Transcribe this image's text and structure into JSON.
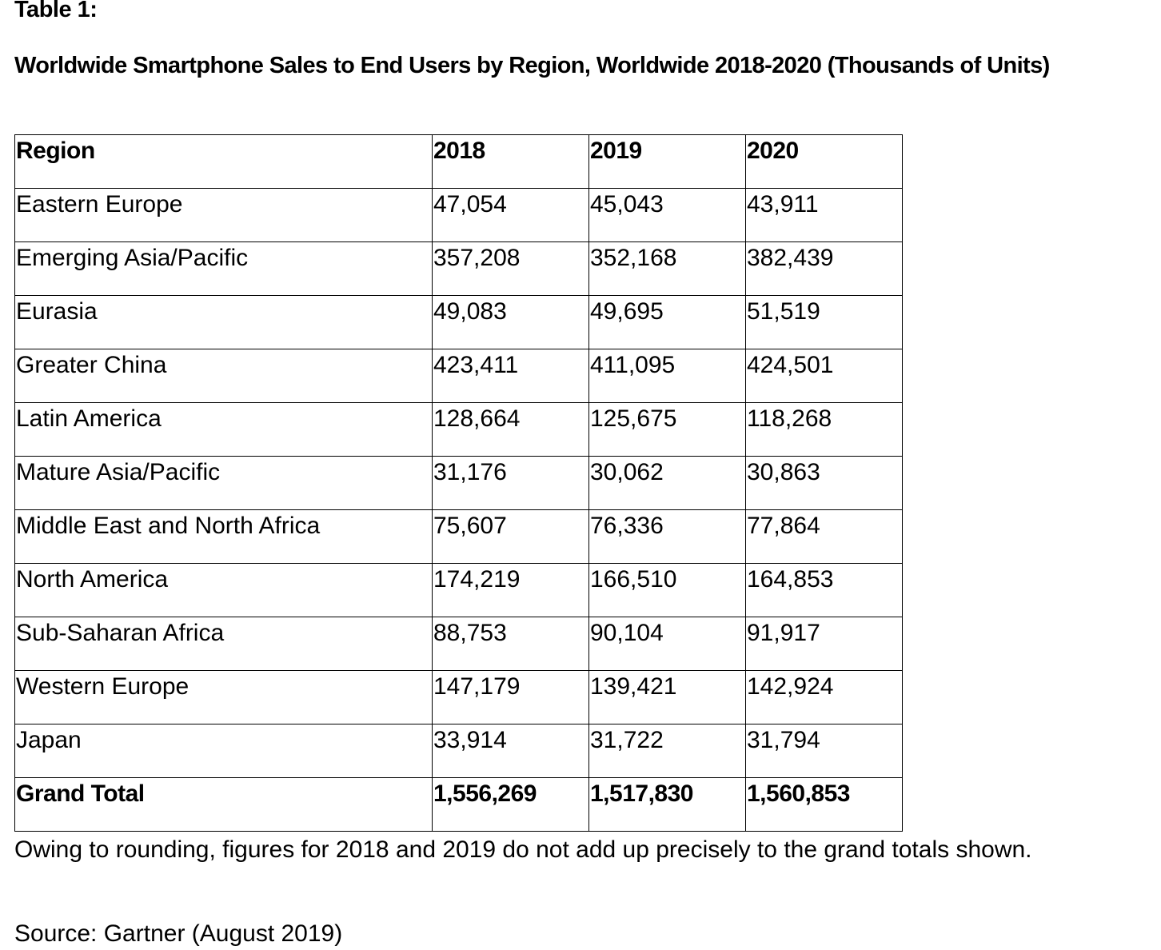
{
  "table_label": "Table 1:",
  "title": "Worldwide Smartphone Sales to End Users by Region, Worldwide 2018-2020 (Thousands of Units)",
  "table": {
    "headers": [
      "Region",
      "2018",
      "2019",
      "2020"
    ],
    "rows": [
      [
        "Eastern Europe",
        "47,054",
        "45,043",
        "43,911"
      ],
      [
        "Emerging Asia/Pacific",
        "357,208",
        "352,168",
        "382,439"
      ],
      [
        "Eurasia",
        "49,083",
        "49,695",
        "51,519"
      ],
      [
        "Greater China",
        "423,411",
        "411,095",
        "424,501"
      ],
      [
        "Latin America",
        "128,664",
        "125,675",
        "118,268"
      ],
      [
        "Mature Asia/Pacific",
        "31,176",
        "30,062",
        "30,863"
      ],
      [
        "Middle East and North Africa",
        "75,607",
        "76,336",
        "77,864"
      ],
      [
        "North America",
        "174,219",
        "166,510",
        "164,853"
      ],
      [
        "Sub-Saharan Africa",
        "88,753",
        "90,104",
        "91,917"
      ],
      [
        "Western Europe",
        "147,179",
        "139,421",
        "142,924"
      ],
      [
        "Japan",
        "33,914",
        "31,722",
        "31,794"
      ]
    ],
    "total": [
      "Grand Total",
      "1,556,269",
      "1,517,830",
      "1,560,853"
    ]
  },
  "note": "Owing to rounding, figures for 2018 and 2019 do not add up precisely to the grand totals shown.",
  "source": "Source: Gartner (August 2019)"
}
